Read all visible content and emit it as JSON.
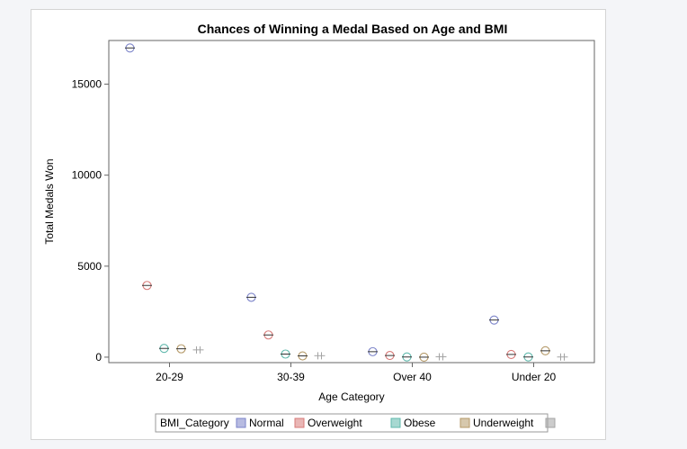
{
  "chart_data": {
    "type": "scatter",
    "title": "Chances of Winning a Medal Based on Age and BMI",
    "xlabel": "Age Category",
    "ylabel": "Total Medals Won",
    "categories": [
      "20-29",
      "30-39",
      "Over 40",
      "Under 20"
    ],
    "ylim": [
      -300,
      17400
    ],
    "yticks": [
      0,
      5000,
      10000,
      15000
    ],
    "ytick_labels": [
      "0",
      "5000",
      "10000",
      "15000"
    ],
    "grid": false,
    "legend": {
      "title": "BMI_Category",
      "placement": "bottom"
    },
    "series": [
      {
        "name": "Normal",
        "color": "#7b83c9",
        "values": [
          16990,
          3290,
          300,
          2040
        ]
      },
      {
        "name": "Overweight",
        "color": "#d77a78",
        "values": [
          3940,
          1220,
          90,
          150
        ]
      },
      {
        "name": "Obese",
        "color": "#5fb8ac",
        "values": [
          480,
          170,
          10,
          10
        ]
      },
      {
        "name": "Underweight",
        "color": "#b59a69",
        "values": [
          460,
          70,
          0,
          350
        ]
      },
      {
        "name": "",
        "color": "#a3a3a3",
        "values": [
          400,
          80,
          20,
          10
        ]
      }
    ]
  }
}
